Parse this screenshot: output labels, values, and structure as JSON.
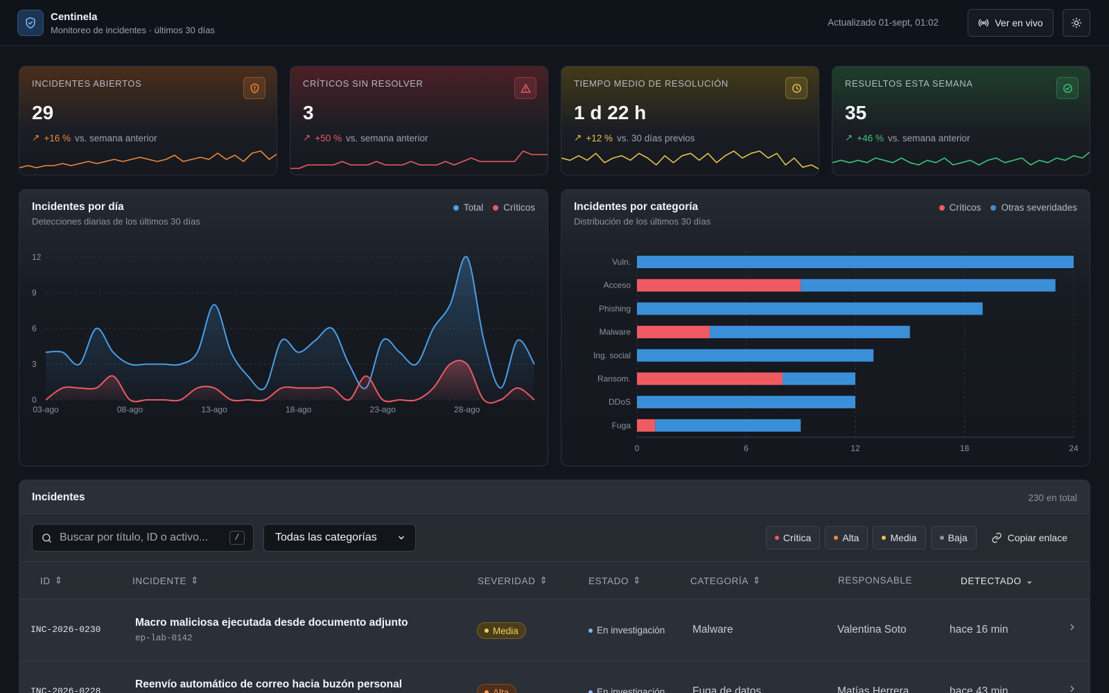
{
  "header": {
    "title": "Centinela",
    "subtitle": "Monitoreo de incidentes · últimos 30 días",
    "updated": "Actualizado 01-sept, 01:02",
    "live_label": "Ver en vivo",
    "brand_icon": "shield-icon",
    "theme_icon": "sun-icon"
  },
  "kpis": [
    {
      "label": "INCIDENTES ABIERTOS",
      "value": "29",
      "delta": "+16 %",
      "compare": "vs. semana anterior",
      "icon": "shield-alert-icon",
      "color": "#f08a3a",
      "spark": [
        2,
        3,
        2,
        3,
        3,
        4,
        3,
        4,
        5,
        4,
        5,
        6,
        5,
        6,
        7,
        6,
        5,
        6,
        8,
        5,
        6,
        7,
        6,
        9,
        6,
        8,
        5,
        9,
        10,
        6,
        9
      ]
    },
    {
      "label": "CRÍTICOS SIN RESOLVER",
      "value": "3",
      "delta": "+50 %",
      "compare": "vs. semana anterior",
      "icon": "alert-triangle-icon",
      "color": "#ef5a63",
      "spark": [
        1,
        1,
        2,
        2,
        2,
        2,
        3,
        2,
        2,
        2,
        3,
        2,
        2,
        2,
        3,
        2,
        2,
        2,
        3,
        2,
        3,
        4,
        3,
        3,
        3,
        3,
        3,
        6,
        5,
        5,
        5
      ]
    },
    {
      "label": "TIEMPO MEDIO DE RESOLUCIÓN",
      "value": "1 d 22 h",
      "delta": "+12 %",
      "compare": "vs. 30 días previos",
      "icon": "clock-icon",
      "color": "#e8c24a",
      "spark": [
        6,
        5,
        7,
        5,
        8,
        4,
        6,
        7,
        5,
        8,
        6,
        3,
        7,
        4,
        7,
        8,
        5,
        8,
        4,
        7,
        9,
        6,
        8,
        9,
        6,
        8,
        3,
        6,
        2,
        3,
        1
      ]
    },
    {
      "label": "RESUELTOS ESTA SEMANA",
      "value": "35",
      "delta": "+46 %",
      "compare": "vs. semana anterior",
      "icon": "check-circle-icon",
      "color": "#3fc47a",
      "spark": [
        4,
        5,
        4,
        5,
        4,
        6,
        5,
        4,
        6,
        4,
        3,
        5,
        4,
        6,
        3,
        4,
        5,
        3,
        5,
        6,
        4,
        5,
        6,
        3,
        5,
        4,
        6,
        5,
        7,
        6,
        9
      ]
    }
  ],
  "line_panel": {
    "title": "Incidentes por día",
    "subtitle": "Detecciones diarias de los últimos 30 días"
  },
  "bar_panel": {
    "title": "Incidentes por categoría",
    "subtitle": "Distribución de los últimos 30 días"
  },
  "chart_data": [
    {
      "type": "line",
      "x": [
        "03-ago",
        "04-ago",
        "05-ago",
        "06-ago",
        "07-ago",
        "08-ago",
        "09-ago",
        "10-ago",
        "11-ago",
        "12-ago",
        "13-ago",
        "14-ago",
        "15-ago",
        "16-ago",
        "17-ago",
        "18-ago",
        "19-ago",
        "20-ago",
        "21-ago",
        "22-ago",
        "23-ago",
        "24-ago",
        "25-ago",
        "26-ago",
        "27-ago",
        "28-ago",
        "29-ago",
        "30-ago",
        "31-ago",
        "01-sept"
      ],
      "x_tick_labels": [
        "03-ago",
        "08-ago",
        "13-ago",
        "18-ago",
        "23-ago",
        "28-ago"
      ],
      "series": [
        {
          "name": "Total",
          "color": "#4a9fe8",
          "values": [
            4,
            4,
            3,
            6,
            4,
            3,
            3,
            3,
            3,
            4,
            8,
            4,
            2,
            1,
            5,
            4,
            5,
            6,
            3,
            1,
            5,
            4,
            3,
            6,
            8,
            12,
            5,
            1,
            5,
            3
          ]
        },
        {
          "name": "Críticos",
          "color": "#ef5a63",
          "values": [
            0,
            1,
            1,
            1,
            2,
            0,
            0,
            0,
            0,
            1,
            1,
            0,
            0,
            0,
            1,
            1,
            1,
            1,
            0,
            2,
            0,
            0,
            0,
            1,
            3,
            3,
            0,
            0,
            1,
            0
          ]
        }
      ],
      "yticks": [
        0,
        3,
        6,
        9,
        12
      ],
      "ylim": [
        0,
        12
      ],
      "grid": true,
      "legend": "top-right"
    },
    {
      "type": "bar",
      "orientation": "horizontal",
      "stacked": true,
      "categories": [
        "Vuln.",
        "Acceso",
        "Phishing",
        "Malware",
        "Ing. social",
        "Ransom.",
        "DDoS",
        "Fuga"
      ],
      "series": [
        {
          "name": "Críticos",
          "color": "#ef5a63",
          "values": [
            0,
            9,
            0,
            4,
            0,
            8,
            0,
            1
          ]
        },
        {
          "name": "Otras severidades",
          "color": "#3a8fd8",
          "values": [
            24,
            14,
            19,
            11,
            13,
            4,
            12,
            8
          ]
        }
      ],
      "xticks": [
        0,
        6,
        12,
        18,
        24
      ],
      "xlim": [
        0,
        24
      ],
      "grid": true,
      "legend": "top-right"
    }
  ],
  "table": {
    "title": "Incidentes",
    "total": "230 en total",
    "search_placeholder": "Buscar por título, ID o activo...",
    "search_shortcut": "/",
    "category_select": "Todas las categorías",
    "severity_chips": [
      {
        "label": "Crítica",
        "color": "#ef5a63"
      },
      {
        "label": "Alta",
        "color": "#f08a3a"
      },
      {
        "label": "Media",
        "color": "#e8c24a"
      },
      {
        "label": "Baja",
        "color": "#8c939f"
      }
    ],
    "copy_link": "Copiar enlace",
    "columns": [
      "ID",
      "INCIDENTE",
      "SEVERIDAD",
      "ESTADO",
      "CATEGORÍA",
      "RESPONSABLE",
      "DETECTADO"
    ],
    "rows": [
      {
        "id": "INC-2026-0230",
        "title": "Macro maliciosa ejecutada desde documento adjunto",
        "asset": "ep-lab-0142",
        "severity": "Media",
        "severity_color": "#e8c24a",
        "status": "En investigación",
        "category": "Malware",
        "owner": "Valentina Soto",
        "detected": "hace 16 min"
      },
      {
        "id": "INC-2026-0228",
        "title": "Reenvío automático de correo hacia buzón personal",
        "asset": "",
        "severity": "Alta",
        "severity_color": "#f08a3a",
        "status": "En investigación",
        "category": "Fuga de datos",
        "owner": "Matías Herrera",
        "detected": "hace 43 min"
      }
    ]
  }
}
